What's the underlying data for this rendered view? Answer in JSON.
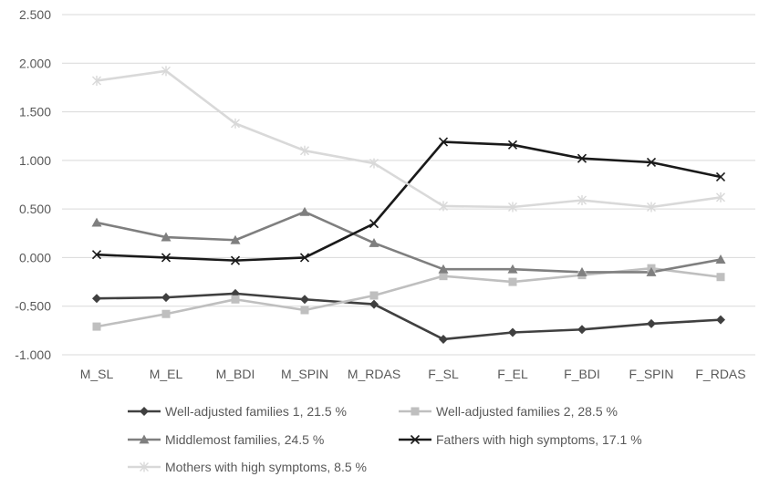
{
  "chart_data": {
    "type": "line",
    "title": "",
    "xlabel": "",
    "ylabel": "",
    "categories": [
      "M_SL",
      "M_EL",
      "M_BDI",
      "M_SPIN",
      "M_RDAS",
      "F_SL",
      "F_EL",
      "F_BDI",
      "F_SPIN",
      "F_RDAS"
    ],
    "ylim": [
      -1.0,
      2.5
    ],
    "ytick_step": 0.5,
    "y_tick_labels": [
      "-1.000",
      "-0.500",
      "0.000",
      "0.500",
      "1.000",
      "1.500",
      "2.000",
      "2.500"
    ],
    "grid": "horizontal",
    "legend_position": "bottom",
    "series": [
      {
        "name": "Well-adjusted families 1, 21.5 %",
        "color": "#404040",
        "marker": "diamond",
        "values": [
          -0.42,
          -0.41,
          -0.37,
          -0.43,
          -0.48,
          -0.84,
          -0.77,
          -0.74,
          -0.68,
          -0.64
        ]
      },
      {
        "name": "Well-adjusted families 2, 28.5 %",
        "color": "#bfbfbf",
        "marker": "square",
        "values": [
          -0.71,
          -0.58,
          -0.43,
          -0.54,
          -0.39,
          -0.19,
          -0.25,
          -0.18,
          -0.11,
          -0.2
        ]
      },
      {
        "name": "Middlemost families, 24.5 %",
        "color": "#7f7f7f",
        "marker": "triangle",
        "values": [
          0.36,
          0.21,
          0.18,
          0.47,
          0.15,
          -0.12,
          -0.12,
          -0.15,
          -0.15,
          -0.02
        ]
      },
      {
        "name": "Fathers with high symptoms, 17.1 %",
        "color": "#1a1a1a",
        "marker": "x",
        "values": [
          0.03,
          0.0,
          -0.03,
          0.0,
          0.35,
          1.19,
          1.16,
          1.02,
          0.98,
          0.83
        ]
      },
      {
        "name": "Mothers with high symptoms, 8.5 %",
        "color": "#d9d9d9",
        "marker": "star",
        "values": [
          1.82,
          1.92,
          1.38,
          1.1,
          0.97,
          0.53,
          0.52,
          0.59,
          0.52,
          0.62
        ]
      }
    ]
  }
}
